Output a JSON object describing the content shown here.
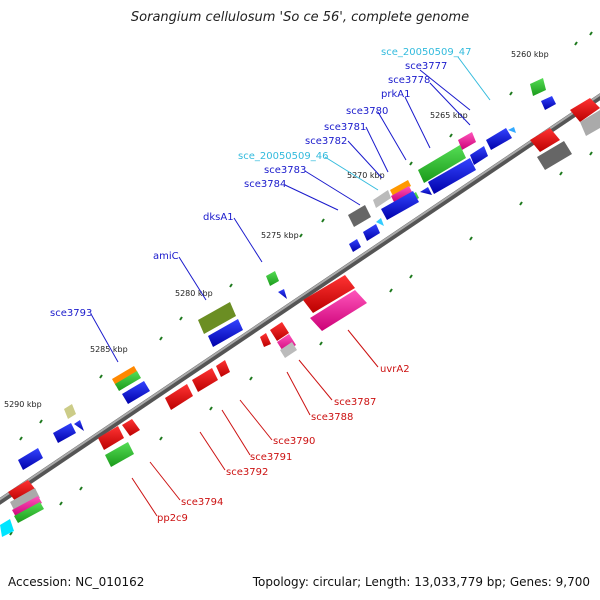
{
  "title": "Sorangium cellulosum 'So ce 56', complete genome",
  "footer": {
    "accession": "Accession: NC_010162",
    "info": "Topology: circular; Length: 13,033,779 bp; Genes: 9,700"
  },
  "colors": {
    "forward_label": "#1a1acc",
    "forward_label_ncrna": "#33bbdd",
    "reverse_label": "#cc1111",
    "backbone": "#888888",
    "tick": "#1f7a1f"
  },
  "kbp_marks": [
    "5260 kbp",
    "5265 kbp",
    "5270 kbp",
    "5275 kbp",
    "5280 kbp",
    "5285 kbp",
    "5290 kbp"
  ],
  "forward_labels": [
    "sce_20050509_47",
    "sce3777",
    "sce3778",
    "prkA1",
    "sce3780",
    "sce3781",
    "sce3782",
    "sce_20050509_46",
    "sce3783",
    "sce3784",
    "dksA1",
    "amiC",
    "sce3793"
  ],
  "reverse_labels": [
    "uvrA2",
    "sce3787",
    "sce3788",
    "sce3790",
    "sce3791",
    "sce3792",
    "sce3794",
    "pp2c9"
  ]
}
